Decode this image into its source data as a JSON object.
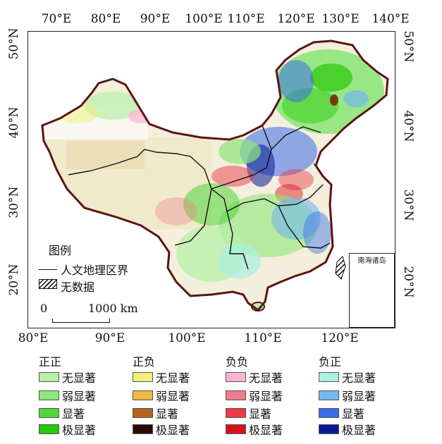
{
  "axes": {
    "top": [
      "70°E",
      "80°E",
      "90°E",
      "100°E",
      "110°E",
      "120°E",
      "130°E",
      "140°E"
    ],
    "bottom": [
      "80°E",
      "90°E",
      "100°E",
      "110°E",
      "120°E"
    ],
    "left": [
      "50°N",
      "40°N",
      "30°N",
      "20°N"
    ],
    "right": [
      "50°N",
      "40°N",
      "30°N",
      "20°N"
    ]
  },
  "map_legend": {
    "title": "图例",
    "boundary_label": "人文地理区界",
    "nodata_label": "无数据",
    "scale_zero": "0",
    "scale_end": "1000 km"
  },
  "inset": {
    "title": "南海诸岛"
  },
  "colors": {
    "boundary": "#5a1414",
    "region_line": "#111111"
  },
  "classes": [
    {
      "title": "正正",
      "items": [
        {
          "label": "无显著",
          "color": "#b8f0a8"
        },
        {
          "label": "弱显著",
          "color": "#8fe67a"
        },
        {
          "label": "显著",
          "color": "#52d63a"
        },
        {
          "label": "极显著",
          "color": "#28c80a"
        }
      ]
    },
    {
      "title": "正负",
      "items": [
        {
          "label": "无显著",
          "color": "#f0f07a"
        },
        {
          "label": "弱显著",
          "color": "#f0b844"
        },
        {
          "label": "显著",
          "color": "#b4641e"
        },
        {
          "label": "极显著",
          "color": "#2a0c06"
        }
      ]
    },
    {
      "title": "负负",
      "items": [
        {
          "label": "无显著",
          "color": "#f8b4d2"
        },
        {
          "label": "弱显著",
          "color": "#f27a8e"
        },
        {
          "label": "显著",
          "color": "#ea3a48"
        },
        {
          "label": "极显著",
          "color": "#d8101a"
        }
      ]
    },
    {
      "title": "负正",
      "items": [
        {
          "label": "无显著",
          "color": "#a8f0e0"
        },
        {
          "label": "弱显著",
          "color": "#72b8ee"
        },
        {
          "label": "显著",
          "color": "#3a6ee8"
        },
        {
          "label": "极显著",
          "color": "#0a1a96"
        }
      ]
    }
  ]
}
